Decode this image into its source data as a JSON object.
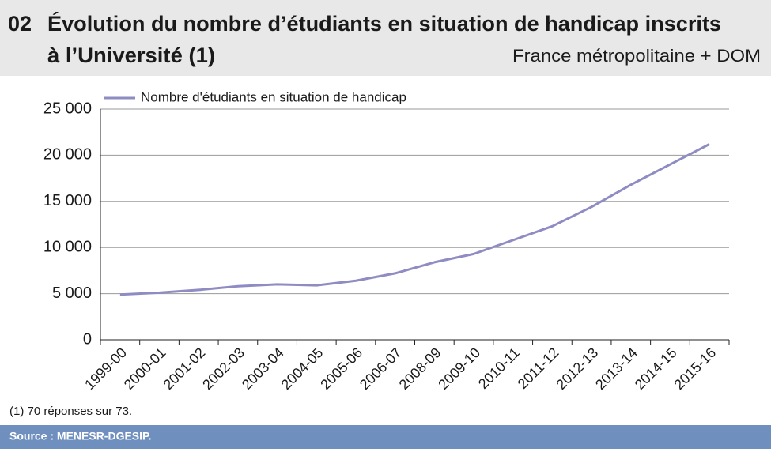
{
  "chart_data": {
    "type": "line",
    "number": "02",
    "title": [
      "Évolution du nombre d’étudiants en situation de handicap inscrits",
      "à l’Université (1)"
    ],
    "subtitle": "France métropolitaine + DOM",
    "categories": [
      "1999-00",
      "2000-01",
      "2001-02",
      "2002-03",
      "2003-04",
      "2004-05",
      "2005-06",
      "2006-07",
      "2008-09",
      "2009-10",
      "2010-11",
      "2011-12",
      "2012-13",
      "2013-14",
      "2014-15",
      "2015-16"
    ],
    "series": [
      {
        "name": "Nombre d'étudiants en situation de handicap",
        "color": "#8e8cc2",
        "values": [
          4900,
          5100,
          5400,
          5800,
          6000,
          5900,
          6400,
          7200,
          8400,
          9300,
          10800,
          12300,
          14400,
          16800,
          19000,
          21200
        ]
      }
    ],
    "ylim": [
      0,
      25000
    ],
    "yticks": [
      0,
      {
        "value": 5000,
        "label": "5 000"
      },
      {
        "value": 10000,
        "label": "10 000"
      },
      {
        "value": 15000,
        "label": "15 000"
      },
      {
        "value": 20000,
        "label": "20 000"
      },
      {
        "value": 25000,
        "label": "25 000"
      }
    ],
    "grid": true,
    "legend": "top",
    "footnote": "(1) 70 réponses sur 73.",
    "source": "Source  : MENESR-DGESIP."
  }
}
